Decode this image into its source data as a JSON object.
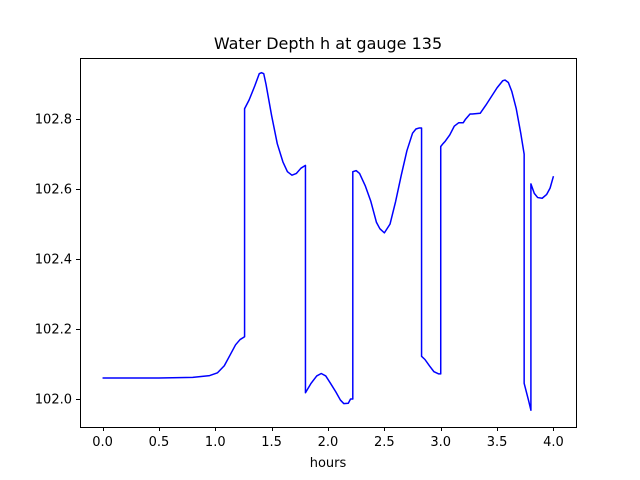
{
  "chart_data": {
    "type": "line",
    "title": "Water Depth h at gauge 135",
    "xlabel": "hours",
    "ylabel": "",
    "xlim": [
      -0.2,
      4.2
    ],
    "ylim": [
      101.92,
      102.975
    ],
    "xticks": [
      0.0,
      0.5,
      1.0,
      1.5,
      2.0,
      2.5,
      3.0,
      3.5,
      4.0
    ],
    "xtick_labels": [
      "0.0",
      "0.5",
      "1.0",
      "1.5",
      "2.0",
      "2.5",
      "3.0",
      "3.5",
      "4.0"
    ],
    "yticks": [
      102.0,
      102.2,
      102.4,
      102.6,
      102.8
    ],
    "ytick_labels": [
      "102.0",
      "102.2",
      "102.4",
      "102.6",
      "102.8"
    ],
    "grid": false,
    "line_color": "#0000ff",
    "series": [
      {
        "x": [
          0.0,
          0.5,
          0.8,
          0.95,
          1.02,
          1.08,
          1.13,
          1.18,
          1.22,
          1.26,
          1.26,
          1.3,
          1.35,
          1.39,
          1.41,
          1.43,
          1.45,
          1.5,
          1.55,
          1.6,
          1.64,
          1.68,
          1.72,
          1.76,
          1.8,
          1.8,
          1.85,
          1.9,
          1.94,
          1.98,
          2.02,
          2.07,
          2.11,
          2.14,
          2.18,
          2.2,
          2.22,
          2.22,
          2.25,
          2.28,
          2.33,
          2.38,
          2.43,
          2.46,
          2.5,
          2.55,
          2.6,
          2.65,
          2.7,
          2.75,
          2.78,
          2.81,
          2.83,
          2.83,
          2.86,
          2.9,
          2.94,
          2.98,
          3.0,
          3.0,
          3.02,
          3.04,
          3.08,
          3.12,
          3.16,
          3.2,
          3.22,
          3.26,
          3.28,
          3.35,
          3.4,
          3.45,
          3.5,
          3.55,
          3.57,
          3.6,
          3.63,
          3.67,
          3.71,
          3.74,
          3.74,
          3.78,
          3.8,
          3.8,
          3.83,
          3.86,
          3.9,
          3.94,
          3.97,
          4.0
        ],
        "y": [
          102.06,
          102.06,
          102.062,
          102.067,
          102.075,
          102.095,
          102.125,
          102.155,
          102.17,
          102.178,
          102.83,
          102.855,
          102.895,
          102.93,
          102.933,
          102.93,
          102.9,
          102.81,
          102.73,
          102.678,
          102.65,
          102.64,
          102.645,
          102.66,
          102.668,
          102.018,
          102.045,
          102.066,
          102.073,
          102.066,
          102.046,
          102.02,
          101.997,
          101.987,
          101.988,
          102.0,
          102.0,
          102.65,
          102.653,
          102.645,
          102.61,
          102.565,
          102.505,
          102.487,
          102.475,
          102.5,
          102.565,
          102.64,
          102.71,
          102.76,
          102.772,
          102.775,
          102.775,
          102.122,
          102.113,
          102.095,
          102.078,
          102.072,
          102.072,
          102.722,
          102.73,
          102.737,
          102.755,
          102.78,
          102.79,
          102.79,
          102.8,
          102.815,
          102.815,
          102.817,
          102.84,
          102.865,
          102.89,
          102.91,
          102.912,
          102.905,
          102.88,
          102.83,
          102.76,
          102.7,
          102.045,
          101.995,
          101.968,
          102.615,
          102.588,
          102.576,
          102.574,
          102.585,
          102.603,
          102.637
        ]
      }
    ]
  }
}
